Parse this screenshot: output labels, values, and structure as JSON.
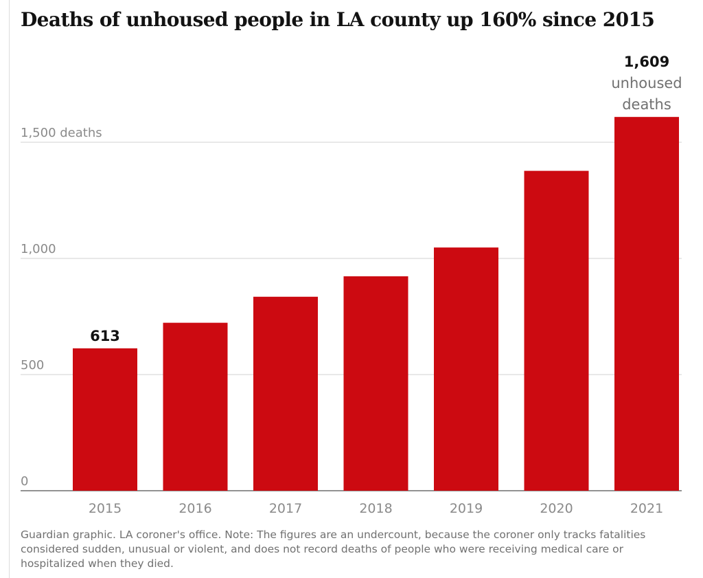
{
  "title": "Deaths of unhoused people in LA county up 160% since 2015",
  "source_note": "Guardian graphic. LA coroner's office. Note: The figures are an undercount, because the coroner only tracks fatalities considered sudden, unusual or violent, and does not record deaths of people who were receiving medical care or hospitalized when they died.",
  "colors": {
    "bar": "#cc0a11",
    "grid": "#d0d0d0",
    "tick_text": "#8a8a8a",
    "label_text": "#121212",
    "note_text": "#707070"
  },
  "chart_data": {
    "type": "bar",
    "categories": [
      "2015",
      "2016",
      "2017",
      "2018",
      "2019",
      "2020",
      "2021"
    ],
    "values": [
      613,
      723,
      835,
      923,
      1047,
      1377,
      1609
    ],
    "ylim": [
      0,
      1600
    ],
    "y_ticks": [
      {
        "value": 0,
        "label": "0"
      },
      {
        "value": 500,
        "label": "500"
      },
      {
        "value": 1000,
        "label": "1,000"
      },
      {
        "value": 1500,
        "label": "1,500 deaths"
      }
    ],
    "data_labels": [
      {
        "index": 0,
        "lines": [
          "613"
        ]
      },
      {
        "index": 6,
        "lines": [
          "1,609",
          "unhoused",
          "deaths"
        ]
      }
    ],
    "grid": true,
    "legend": "none"
  }
}
